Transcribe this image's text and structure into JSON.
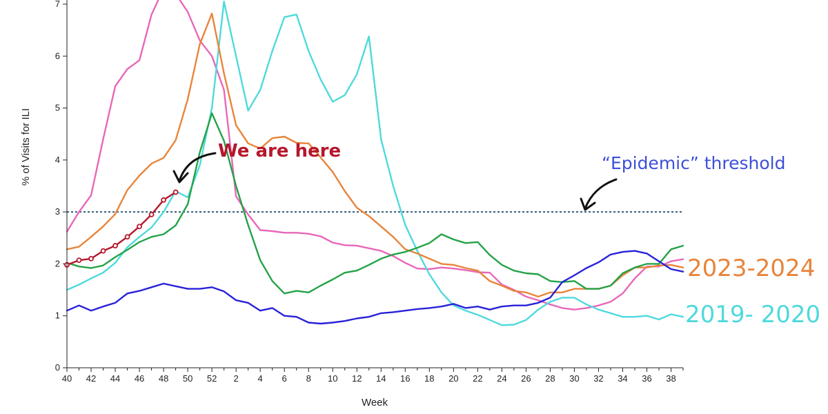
{
  "chart_data": {
    "type": "line",
    "title": "",
    "xlabel": "Week",
    "ylabel": "% of Visits for ILI",
    "ylim": [
      0,
      7
    ],
    "yticks": [
      "0",
      "1",
      "2",
      "3",
      "4",
      "5",
      "6",
      "7"
    ],
    "xticks": [
      "40",
      "42",
      "44",
      "46",
      "48",
      "50",
      "52",
      "2",
      "4",
      "6",
      "8",
      "10",
      "12",
      "14",
      "16",
      "18",
      "20",
      "22",
      "24",
      "26",
      "28",
      "30",
      "32",
      "34",
      "36",
      "38"
    ],
    "x_weeks": [
      40,
      41,
      42,
      43,
      44,
      45,
      46,
      47,
      48,
      49,
      50,
      51,
      52,
      1,
      2,
      3,
      4,
      5,
      6,
      7,
      8,
      9,
      10,
      11,
      12,
      13,
      14,
      15,
      16,
      17,
      18,
      19,
      20,
      21,
      22,
      23,
      24,
      25,
      26,
      27,
      28,
      29,
      30,
      31,
      32,
      33,
      34,
      35,
      36,
      37,
      38,
      39
    ],
    "grid": false,
    "threshold": {
      "value": 3.0,
      "color": "#2f5d7a"
    },
    "annotations": {
      "we_are_here": "We are here",
      "epidemic_threshold": "“Epidemic” threshold",
      "label_2023": "2023-2024",
      "label_2019": "2019- 2020"
    },
    "series": [
      {
        "color": "#e867b8",
        "values": [
          2.62,
          3.0,
          3.32,
          4.4,
          5.42,
          5.75,
          5.92,
          6.8,
          7.3,
          7.2,
          6.85,
          6.3,
          6.0,
          5.35,
          3.3,
          2.95,
          2.65,
          2.63,
          2.6,
          2.6,
          2.58,
          2.53,
          2.41,
          2.36,
          2.35,
          2.3,
          2.25,
          2.15,
          2.02,
          1.91,
          1.9,
          1.93,
          1.91,
          1.88,
          1.84,
          1.83,
          1.6,
          1.5,
          1.37,
          1.3,
          1.22,
          1.15,
          1.12,
          1.15,
          1.2,
          1.27,
          1.43,
          1.72,
          1.95,
          1.95,
          2.05,
          2.09
        ]
      },
      {
        "color": "#4fd9dc",
        "values": [
          1.5,
          1.6,
          1.72,
          1.83,
          2.02,
          2.32,
          2.52,
          2.7,
          3.0,
          3.4,
          3.28,
          3.9,
          5.0,
          7.05,
          6.0,
          4.95,
          5.35,
          6.1,
          6.75,
          6.8,
          6.1,
          5.55,
          5.12,
          5.25,
          5.65,
          6.38,
          4.4,
          3.5,
          2.75,
          2.25,
          1.8,
          1.45,
          1.2,
          1.1,
          1.02,
          0.92,
          0.82,
          0.83,
          0.92,
          1.12,
          1.27,
          1.35,
          1.35,
          1.22,
          1.12,
          1.05,
          0.98,
          0.98,
          1.0,
          0.93,
          1.03,
          0.98
        ]
      },
      {
        "color": "#e8843a",
        "values": [
          2.28,
          2.33,
          2.52,
          2.72,
          2.96,
          3.42,
          3.7,
          3.93,
          4.04,
          4.38,
          5.17,
          6.23,
          6.82,
          5.67,
          4.67,
          4.32,
          4.22,
          4.42,
          4.45,
          4.33,
          4.32,
          4.05,
          3.77,
          3.4,
          3.08,
          2.92,
          2.72,
          2.52,
          2.28,
          2.2,
          2.1,
          2.0,
          1.98,
          1.92,
          1.87,
          1.67,
          1.58,
          1.48,
          1.45,
          1.37,
          1.45,
          1.45,
          1.52,
          1.52,
          1.52,
          1.58,
          1.78,
          1.93,
          1.93,
          1.97,
          1.98,
          1.93
        ]
      },
      {
        "color": "#24a248",
        "values": [
          2.02,
          1.95,
          1.92,
          1.97,
          2.13,
          2.27,
          2.42,
          2.52,
          2.57,
          2.74,
          3.15,
          4.15,
          4.9,
          4.37,
          3.5,
          2.75,
          2.07,
          1.67,
          1.43,
          1.48,
          1.45,
          1.58,
          1.7,
          1.83,
          1.87,
          1.98,
          2.1,
          2.18,
          2.23,
          2.31,
          2.4,
          2.57,
          2.47,
          2.4,
          2.42,
          2.17,
          1.98,
          1.87,
          1.82,
          1.8,
          1.67,
          1.65,
          1.67,
          1.52,
          1.52,
          1.58,
          1.82,
          1.93,
          2.0,
          2.0,
          2.28,
          2.35
        ]
      },
      {
        "color": "#2821d8",
        "values": [
          1.1,
          1.2,
          1.1,
          1.18,
          1.25,
          1.43,
          1.48,
          1.55,
          1.62,
          1.57,
          1.52,
          1.52,
          1.55,
          1.47,
          1.3,
          1.25,
          1.1,
          1.15,
          1.0,
          0.98,
          0.87,
          0.85,
          0.87,
          0.9,
          0.95,
          0.98,
          1.05,
          1.07,
          1.1,
          1.13,
          1.15,
          1.18,
          1.23,
          1.15,
          1.18,
          1.12,
          1.18,
          1.2,
          1.2,
          1.25,
          1.35,
          1.65,
          1.78,
          1.92,
          2.03,
          2.18,
          2.23,
          2.25,
          2.2,
          2.05,
          1.9,
          1.85
        ]
      },
      {
        "color": "#b5172c",
        "markers": true,
        "values": [
          1.98,
          2.07,
          2.1,
          2.25,
          2.35,
          2.52,
          2.72,
          2.95,
          3.23,
          3.38
        ]
      }
    ]
  }
}
